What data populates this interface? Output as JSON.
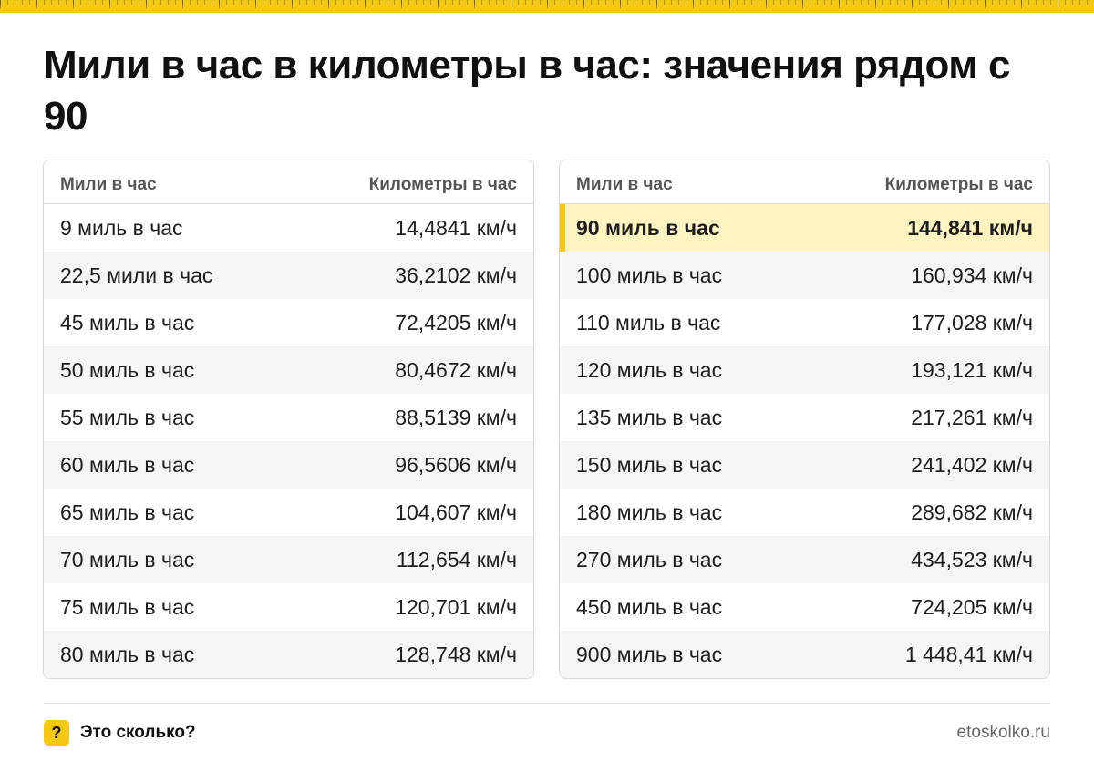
{
  "title": "Мили в час в километры в час: значения рядом с 90",
  "columns": {
    "mph": "Мили в час",
    "kmh": "Километры в час"
  },
  "left_rows": [
    {
      "mph": "9 миль в час",
      "kmh": "14,4841 км/ч"
    },
    {
      "mph": "22,5 мили в час",
      "kmh": "36,2102 км/ч"
    },
    {
      "mph": "45 миль в час",
      "kmh": "72,4205 км/ч"
    },
    {
      "mph": "50 миль в час",
      "kmh": "80,4672 км/ч"
    },
    {
      "mph": "55 миль в час",
      "kmh": "88,5139 км/ч"
    },
    {
      "mph": "60 миль в час",
      "kmh": "96,5606 км/ч"
    },
    {
      "mph": "65 миль в час",
      "kmh": "104,607 км/ч"
    },
    {
      "mph": "70 миль в час",
      "kmh": "112,654 км/ч"
    },
    {
      "mph": "75 миль в час",
      "kmh": "120,701 км/ч"
    },
    {
      "mph": "80 миль в час",
      "kmh": "128,748 км/ч"
    }
  ],
  "right_rows": [
    {
      "mph": "90 миль в час",
      "kmh": "144,841 км/ч",
      "highlight": true
    },
    {
      "mph": "100 миль в час",
      "kmh": "160,934 км/ч"
    },
    {
      "mph": "110 миль в час",
      "kmh": "177,028 км/ч"
    },
    {
      "mph": "120 миль в час",
      "kmh": "193,121 км/ч"
    },
    {
      "mph": "135 миль в час",
      "kmh": "217,261 км/ч"
    },
    {
      "mph": "150 миль в час",
      "kmh": "241,402 км/ч"
    },
    {
      "mph": "180 миль в час",
      "kmh": "289,682 км/ч"
    },
    {
      "mph": "270 миль в час",
      "kmh": "434,523 км/ч"
    },
    {
      "mph": "450 миль в час",
      "kmh": "724,205 км/ч"
    },
    {
      "mph": "900 миль в час",
      "kmh": "1 448,41 км/ч"
    }
  ],
  "footer": {
    "badge": "?",
    "brand": "Это сколько?",
    "site": "etoskolko.ru"
  },
  "colors": {
    "accent": "#f5c911",
    "highlight_bg": "#fdf3c0",
    "stripe": "#f4f5f7"
  }
}
